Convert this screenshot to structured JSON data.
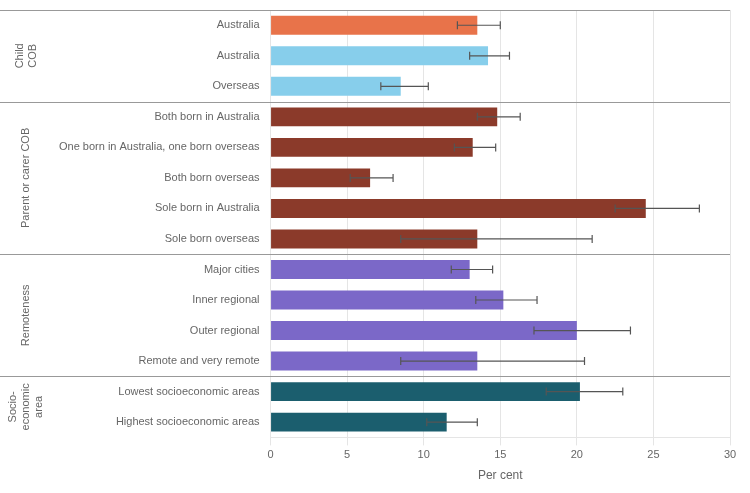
{
  "chart_data": {
    "type": "bar",
    "orientation": "horizontal",
    "categories": [
      "Australia",
      "Australia",
      "Overseas",
      "Both born in Australia",
      "One born in Australia, one born overseas",
      "Both born overseas",
      "Sole born in Australia",
      "Sole born overseas",
      "Major cities",
      "Inner regional",
      "Outer regional",
      "Remote and very remote",
      "Lowest socioeconomic areas",
      "Highest socioeconomic areas"
    ],
    "values": [
      13.5,
      14.2,
      8.5,
      14.8,
      13.2,
      6.5,
      24.5,
      13.5,
      13.0,
      15.2,
      20.0,
      13.5,
      20.2,
      11.5
    ],
    "errors_low": [
      1.3,
      1.2,
      1.3,
      1.3,
      1.2,
      1.3,
      2.0,
      5.0,
      1.2,
      1.8,
      2.8,
      5.0,
      2.2,
      1.3
    ],
    "errors_high": [
      1.5,
      1.4,
      1.8,
      1.5,
      1.5,
      1.5,
      3.5,
      7.5,
      1.5,
      2.2,
      3.5,
      7.0,
      2.8,
      2.0
    ],
    "colors": [
      "#E8734A",
      "#87CEEB",
      "#87CEEB",
      "#8B3A2A",
      "#8B3A2A",
      "#8B3A2A",
      "#8B3A2A",
      "#8B3A2A",
      "#7B68C8",
      "#7B68C8",
      "#7B68C8",
      "#7B68C8",
      "#1B5E6E",
      "#1B5E6E"
    ],
    "groups": [
      {
        "name": "Child\nCOB",
        "span": [
          0,
          2
        ]
      },
      {
        "name": "Parent or carer COB",
        "span": [
          3,
          7
        ]
      },
      {
        "name": "Remoteness",
        "span": [
          8,
          11
        ]
      },
      {
        "name": "Socio-\neconomic\narea",
        "span": [
          12,
          13
        ]
      }
    ],
    "xlabel": "Per cent",
    "xlim": [
      0,
      30
    ],
    "xticks": [
      0,
      5,
      10,
      15,
      20,
      25,
      30
    ],
    "grid": true
  }
}
